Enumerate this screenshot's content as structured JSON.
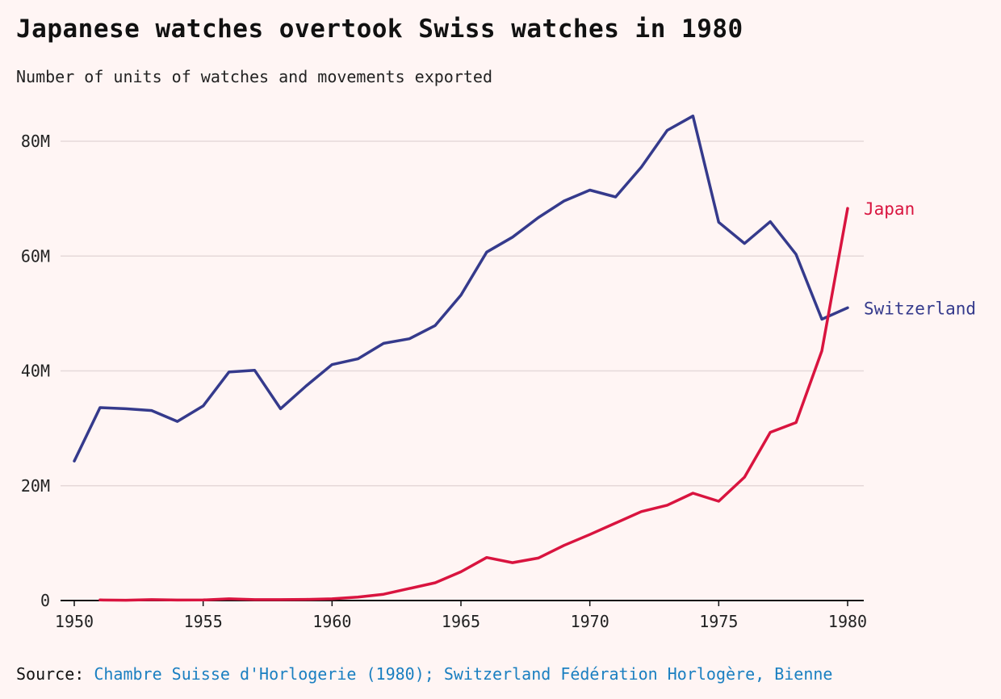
{
  "title": "Japanese watches overtook Swiss watches in 1980",
  "subtitle": "Number of units of watches and movements exported",
  "source": {
    "label": "Source:",
    "link_text": "Chambre Suisse d'Horlogerie (1980); Switzerland Fédération Horlogère, Bienne"
  },
  "colors": {
    "background": "#fff5f4",
    "switzerland": "#353a8c",
    "japan": "#d9143f",
    "grid": "#e6d9d9",
    "axis": "#111111",
    "link": "#1a7fc1"
  },
  "chart_data": {
    "type": "line",
    "title": "Japanese watches overtook Swiss watches in 1980",
    "subtitle": "Number of units of watches and movements exported",
    "xlabel": "",
    "ylabel": "",
    "xlim": [
      1950,
      1980
    ],
    "ylim": [
      0,
      80000000
    ],
    "x_ticks": [
      1950,
      1955,
      1960,
      1965,
      1970,
      1975,
      1980
    ],
    "x_tick_labels": [
      "1950",
      "1955",
      "1960",
      "1965",
      "1970",
      "1975",
      "1980"
    ],
    "y_ticks": [
      0,
      20000000,
      40000000,
      60000000,
      80000000
    ],
    "y_tick_labels": [
      "0",
      "20M",
      "40M",
      "60M",
      "80M"
    ],
    "grid": true,
    "legend": "direct labels at line ends",
    "series": [
      {
        "name": "Switzerland",
        "label": "Switzerland",
        "color": "#353a8c",
        "x": [
          1950,
          1951,
          1952,
          1953,
          1954,
          1955,
          1956,
          1957,
          1958,
          1959,
          1960,
          1961,
          1962,
          1963,
          1964,
          1965,
          1966,
          1967,
          1968,
          1969,
          1970,
          1971,
          1972,
          1973,
          1974,
          1975,
          1976,
          1977,
          1978,
          1979,
          1980
        ],
        "values": [
          24300000,
          33600000,
          33400000,
          33100000,
          31200000,
          33900000,
          39800000,
          40100000,
          33400000,
          37400000,
          41100000,
          42100000,
          44800000,
          45600000,
          47900000,
          53200000,
          60700000,
          63300000,
          66700000,
          69600000,
          71500000,
          70300000,
          75500000,
          81900000,
          84400000,
          65900000,
          62200000,
          66000000,
          60300000,
          49000000,
          51000000
        ]
      },
      {
        "name": "Japan",
        "label": "Japan",
        "color": "#d9143f",
        "x": [
          1951,
          1952,
          1953,
          1954,
          1955,
          1956,
          1957,
          1958,
          1959,
          1960,
          1961,
          1962,
          1963,
          1964,
          1965,
          1966,
          1967,
          1968,
          1969,
          1970,
          1971,
          1972,
          1973,
          1974,
          1975,
          1976,
          1977,
          1978,
          1979,
          1980
        ],
        "values": [
          100000,
          50000,
          150000,
          80000,
          100000,
          300000,
          150000,
          150000,
          200000,
          300000,
          600000,
          1100000,
          2100000,
          3100000,
          5000000,
          7500000,
          6600000,
          7400000,
          9600000,
          11500000,
          13500000,
          15500000,
          16600000,
          18700000,
          17300000,
          21500000,
          29300000,
          31000000,
          43500000,
          68300000
        ]
      }
    ]
  }
}
